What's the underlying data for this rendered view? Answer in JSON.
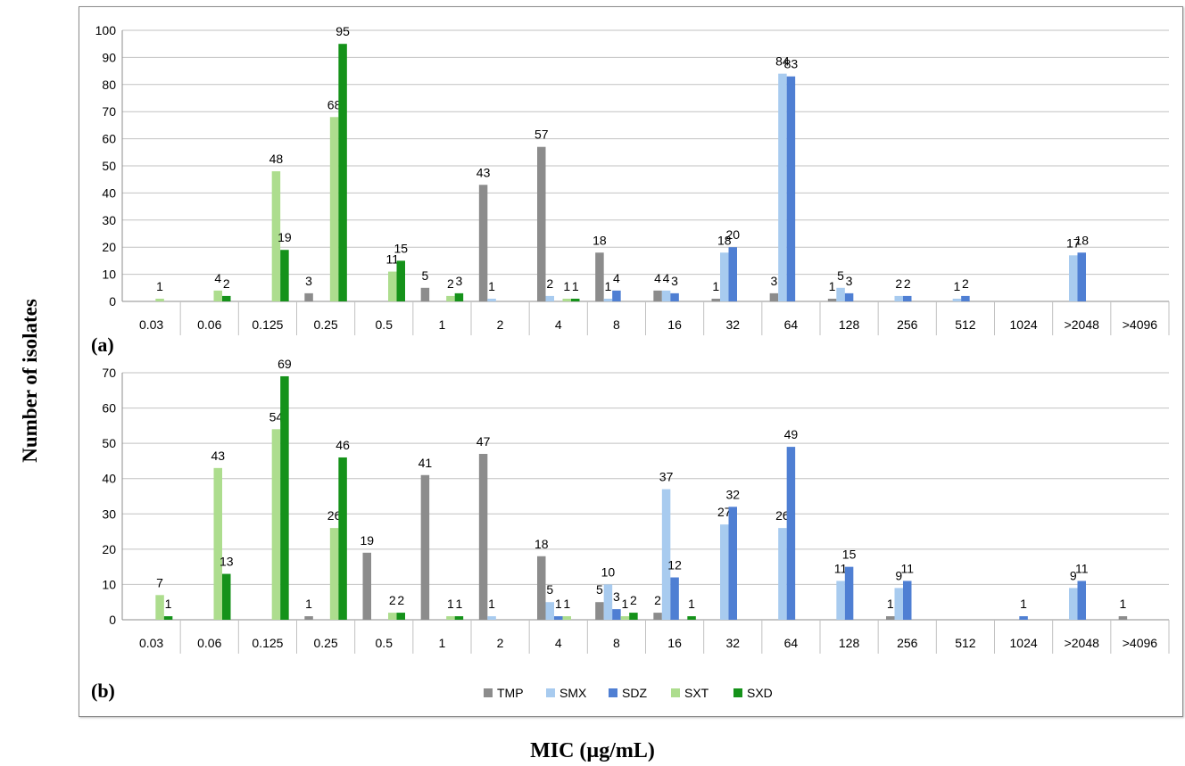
{
  "ylabel": "Number of isolates",
  "xlabel": "MIC (µg/mL)",
  "chart_data": [
    {
      "type": "bar",
      "panel": "(a)",
      "categories": [
        "0.03",
        "0.06",
        "0.125",
        "0.25",
        "0.5",
        "1",
        "2",
        "4",
        "8",
        "16",
        "32",
        "64",
        "128",
        "256",
        "512",
        "1024",
        ">2048",
        ">4096"
      ],
      "ylim": [
        0,
        100
      ],
      "yticks": [
        0,
        10,
        20,
        30,
        40,
        50,
        60,
        70,
        80,
        90,
        100
      ],
      "grid": true,
      "series": [
        {
          "name": "TMP",
          "color": "#8c8c8c",
          "values": [
            null,
            null,
            null,
            3,
            null,
            5,
            43,
            57,
            18,
            4,
            1,
            3,
            1,
            null,
            null,
            null,
            null,
            null
          ]
        },
        {
          "name": "SMX",
          "color": "#a8cbef",
          "values": [
            null,
            null,
            null,
            null,
            null,
            null,
            1,
            2,
            1,
            4,
            18,
            84,
            5,
            2,
            1,
            null,
            17,
            null
          ]
        },
        {
          "name": "SDZ",
          "color": "#4f7fd3",
          "values": [
            null,
            null,
            null,
            null,
            null,
            null,
            null,
            null,
            4,
            3,
            20,
            83,
            3,
            2,
            2,
            null,
            18,
            null
          ]
        },
        {
          "name": "SXT",
          "color": "#addd8e",
          "values": [
            1,
            4,
            48,
            68,
            11,
            2,
            null,
            1,
            null,
            null,
            null,
            null,
            null,
            null,
            null,
            null,
            null,
            null
          ]
        },
        {
          "name": "SXD",
          "color": "#15921a",
          "values": [
            null,
            2,
            19,
            95,
            15,
            3,
            null,
            1,
            null,
            null,
            null,
            null,
            null,
            null,
            null,
            null,
            null,
            null
          ]
        }
      ]
    },
    {
      "type": "bar",
      "panel": "(b)",
      "categories": [
        "0.03",
        "0.06",
        "0.125",
        "0.25",
        "0.5",
        "1",
        "2",
        "4",
        "8",
        "16",
        "32",
        "64",
        "128",
        "256",
        "512",
        "1024",
        ">2048",
        ">4096"
      ],
      "ylim": [
        0,
        70
      ],
      "yticks": [
        0,
        10,
        20,
        30,
        40,
        50,
        60,
        70
      ],
      "grid": true,
      "legend": "bottom",
      "series": [
        {
          "name": "TMP",
          "color": "#8c8c8c",
          "values": [
            null,
            null,
            null,
            1,
            19,
            41,
            47,
            18,
            5,
            2,
            null,
            null,
            null,
            1,
            null,
            null,
            null,
            1
          ]
        },
        {
          "name": "SMX",
          "color": "#a8cbef",
          "values": [
            null,
            null,
            null,
            null,
            null,
            null,
            1,
            5,
            10,
            37,
            27,
            26,
            11,
            9,
            null,
            null,
            9,
            null
          ]
        },
        {
          "name": "SDZ",
          "color": "#4f7fd3",
          "values": [
            null,
            null,
            null,
            null,
            null,
            null,
            null,
            1,
            3,
            12,
            32,
            49,
            15,
            11,
            null,
            1,
            11,
            null
          ]
        },
        {
          "name": "SXT",
          "color": "#addd8e",
          "values": [
            7,
            43,
            54,
            26,
            2,
            1,
            null,
            1,
            1,
            null,
            null,
            null,
            null,
            null,
            null,
            null,
            null,
            null
          ]
        },
        {
          "name": "SXD",
          "color": "#15921a",
          "values": [
            1,
            13,
            69,
            46,
            2,
            1,
            null,
            null,
            2,
            1,
            null,
            null,
            null,
            null,
            null,
            null,
            null,
            null
          ]
        }
      ]
    }
  ]
}
